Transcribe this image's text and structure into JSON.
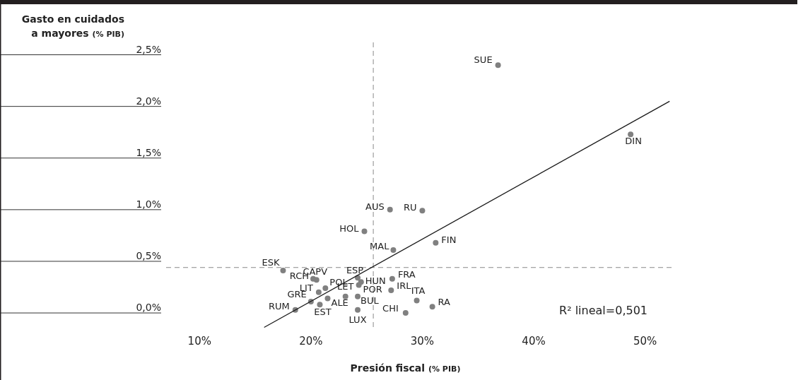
{
  "chart_data": {
    "type": "scatter",
    "xlabel": "Presión fiscal (% PIB)",
    "ylabel": "Gasto en cuidados a mayores (% PIB)",
    "xlim": [
      7,
      52.5
    ],
    "ylim": [
      -0.15,
      2.62
    ],
    "xticks": [
      {
        "value": 10,
        "label": "10%"
      },
      {
        "value": 20,
        "label": "20%"
      },
      {
        "value": 30,
        "label": "30%"
      },
      {
        "value": 40,
        "label": "40%"
      },
      {
        "value": 50,
        "label": "50%"
      }
    ],
    "yticks": [
      {
        "value": 0,
        "label": "0,0%"
      },
      {
        "value": 0.5,
        "label": "0,5%"
      },
      {
        "value": 1,
        "label": "1,0%"
      },
      {
        "value": 1.5,
        "label": "1,5%"
      },
      {
        "value": 2,
        "label": "2,0%"
      },
      {
        "value": 2.5,
        "label": "2,5%"
      }
    ],
    "marker": "circle",
    "grid": false,
    "series": [
      {
        "color": "#808080",
        "x": [
          36.8,
          48.7,
          27.1,
          30.0,
          24.8,
          31.2,
          27.4,
          17.5,
          20.2,
          20.5,
          24.2,
          24.5,
          21.3,
          20.7,
          23.1,
          24.3,
          24.2,
          21.5,
          20.0,
          20.8,
          18.6,
          24.2,
          27.3,
          27.2,
          29.5,
          30.9,
          28.5
        ],
        "values": [
          2.4,
          1.73,
          1.0,
          0.99,
          0.79,
          0.68,
          0.61,
          0.41,
          0.33,
          0.32,
          0.34,
          0.3,
          0.24,
          0.2,
          0.16,
          0.27,
          0.16,
          0.14,
          0.11,
          0.08,
          0.03,
          0.03,
          0.33,
          0.22,
          0.12,
          0.06,
          0.0
        ],
        "value_labels": [
          "SUE",
          "DIN",
          "AUS",
          "RU",
          "HOL",
          "FIN",
          "MAL",
          "ESK",
          "RCH",
          "CAPV",
          "ESP",
          "HUN",
          "POL",
          "LIT",
          "LET",
          "POR",
          "BUL",
          "ALE",
          "GRE",
          "EST",
          "RUM",
          "LUX",
          "FRA",
          "IRL",
          "ITA",
          "RA",
          "CHI"
        ]
      },
      {
        "type": "line",
        "color": "#1a1a1a",
        "x": [
          15.8,
          52.2
        ],
        "values": [
          -0.14,
          2.05
        ],
        "marker": "none"
      }
    ],
    "ref_lines": [
      {
        "axis": "x",
        "value": 25.6,
        "color": "#888888",
        "line_style": "dashed"
      },
      {
        "axis": "y",
        "value": 0.44,
        "color": "#888888",
        "line_style": "dashed"
      }
    ],
    "annotations": [
      "R² lineal=0,501"
    ]
  }
}
